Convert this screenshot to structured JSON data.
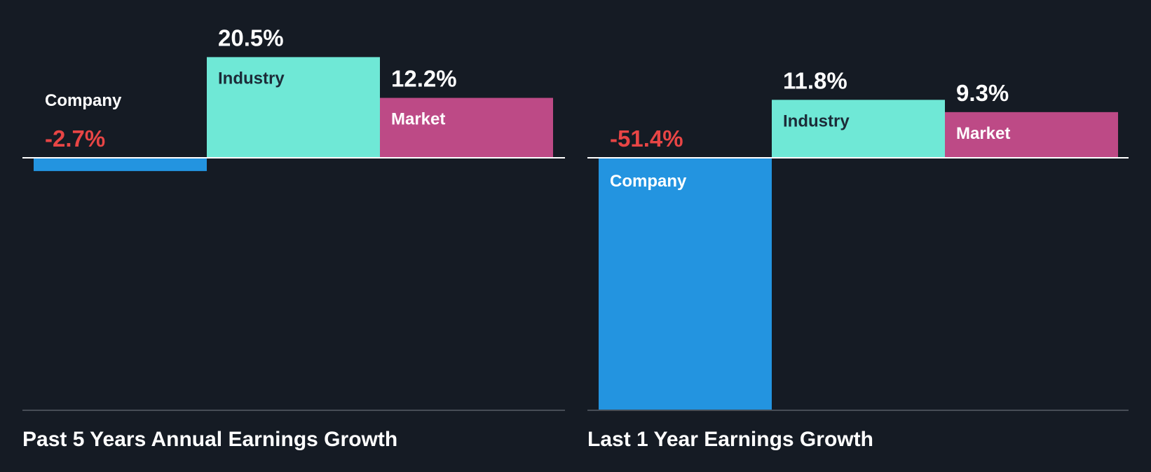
{
  "colors": {
    "background": "#151b24",
    "company": "#2394e0",
    "industry": "#6fe8d6",
    "market": "#bd4a86",
    "negative_value": "#e84545",
    "positive_value": "#ffffff",
    "axis_line": "#ffffff",
    "baseline": "#474d56",
    "dark_label": "#1c2b38",
    "light_label": "#ffffff"
  },
  "chart_data": [
    {
      "type": "bar",
      "title": "Past 5 Years Annual Earnings Growth",
      "categories": [
        "Company",
        "Industry",
        "Market"
      ],
      "values": [
        -2.7,
        20.5,
        12.2
      ],
      "value_labels": [
        "-2.7%",
        "20.5%",
        "12.2%"
      ],
      "unit": "%",
      "ylim": [
        -53.5,
        22.7
      ],
      "grid": false,
      "legend": "none"
    },
    {
      "type": "bar",
      "title": "Last 1 Year Earnings Growth",
      "categories": [
        "Company",
        "Industry",
        "Market"
      ],
      "values": [
        -51.4,
        11.8,
        9.3
      ],
      "value_labels": [
        "-51.4%",
        "11.8%",
        "9.3%"
      ],
      "unit": "%",
      "ylim": [
        -53.5,
        22.7
      ],
      "grid": false,
      "legend": "none"
    }
  ]
}
